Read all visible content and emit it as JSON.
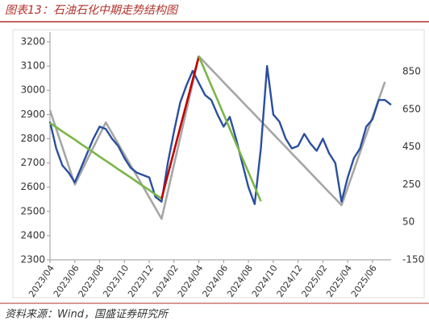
{
  "title": "图表13：石油石化中期走势结构图",
  "source": "资料来源：Wind，国盛证券研究所",
  "chart_data": {
    "type": "line",
    "categories": [
      "2023/04",
      null,
      null,
      null,
      "2023/06",
      null,
      null,
      null,
      "2023/08",
      null,
      null,
      null,
      "2023/10",
      null,
      null,
      null,
      "2023/12",
      null,
      null,
      null,
      "2024/02",
      null,
      null,
      null,
      "2024/04",
      null,
      null,
      null,
      "2024/06",
      null,
      null,
      null,
      "2024/08",
      null,
      null,
      null,
      "2024/10",
      null,
      null,
      null,
      "2024/12",
      null,
      null,
      null,
      "2025/02",
      null,
      null,
      null,
      "2025/04",
      null,
      null,
      null,
      "2025/06",
      null,
      null,
      null
    ],
    "ylim": [
      2300,
      3200
    ],
    "yticks": [
      2300,
      2400,
      2500,
      2600,
      2700,
      2800,
      2900,
      3000,
      3100,
      3200
    ],
    "y2lim": [
      -150,
      1008
    ],
    "y2ticks": [
      -150,
      50,
      250,
      450,
      650,
      850
    ],
    "series": [
      {
        "color": "#a6a6a6",
        "axis": "y2",
        "values": [
          645,
          546,
          448,
          349,
          250,
          316,
          382,
          448,
          514,
          580,
          523,
          466,
          409,
          352,
          296,
          239,
          182,
          125,
          68,
          212,
          356,
          500,
          643,
          787,
          931,
          897,
          862,
          828,
          793,
          759,
          725,
          690,
          656,
          622,
          587,
          553,
          518,
          484,
          450,
          415,
          381,
          347,
          312,
          278,
          243,
          209,
          175,
          140,
          234,
          327,
          421,
          514,
          608,
          701,
          795,
          null
        ]
      },
      {
        "color": "#2b4f9e",
        "values": [
          2870,
          2760,
          2690,
          2660,
          2620,
          2680,
          2740,
          2800,
          2850,
          2840,
          2800,
          2770,
          2720,
          2680,
          2660,
          2650,
          2640,
          2560,
          2540,
          2700,
          2830,
          2950,
          3020,
          3080,
          3030,
          2980,
          2960,
          2900,
          2850,
          2890,
          2800,
          2700,
          2600,
          2530,
          2760,
          3100,
          2900,
          2870,
          2800,
          2760,
          2770,
          2820,
          2780,
          2750,
          2800,
          2740,
          2700,
          2540,
          2640,
          2720,
          2760,
          2850,
          2880,
          2960,
          2960,
          2940
        ]
      },
      {
        "color": "#7ab648",
        "values": [
          2865,
          2848,
          2830,
          2813,
          2796,
          2778,
          2761,
          2744,
          2726,
          2709,
          2692,
          2674,
          2657,
          2640,
          2622,
          2605,
          2588,
          2570,
          2553,
          null,
          null,
          null,
          null,
          null,
          null,
          null,
          null,
          null,
          null,
          null,
          null,
          null,
          null,
          null,
          null,
          null,
          null,
          null,
          null,
          null,
          null,
          null,
          null,
          null,
          null,
          null,
          null,
          null,
          null,
          null,
          null,
          null,
          null,
          null,
          null,
          null
        ]
      },
      {
        "color": "#c00000",
        "values": [
          null,
          null,
          null,
          null,
          null,
          null,
          null,
          null,
          null,
          null,
          null,
          null,
          null,
          null,
          null,
          null,
          null,
          null,
          2553,
          2651,
          2749,
          2847,
          2944,
          3042,
          3140,
          null,
          null,
          null,
          null,
          null,
          null,
          null,
          null,
          null,
          null,
          null,
          null,
          null,
          null,
          null,
          null,
          null,
          null,
          null,
          null,
          null,
          null,
          null,
          null,
          null,
          null,
          null,
          null,
          null,
          null,
          null
        ]
      },
      {
        "color": "#7ab648",
        "values": [
          null,
          null,
          null,
          null,
          null,
          null,
          null,
          null,
          null,
          null,
          null,
          null,
          null,
          null,
          null,
          null,
          null,
          null,
          null,
          null,
          null,
          null,
          null,
          null,
          3140,
          3080,
          3020,
          2961,
          2901,
          2841,
          2781,
          2721,
          2662,
          2602,
          2542,
          null,
          null,
          null,
          null,
          null,
          null,
          null,
          null,
          null,
          null,
          null,
          null,
          null,
          null,
          null,
          null,
          null,
          null,
          null,
          null,
          null
        ]
      }
    ]
  }
}
